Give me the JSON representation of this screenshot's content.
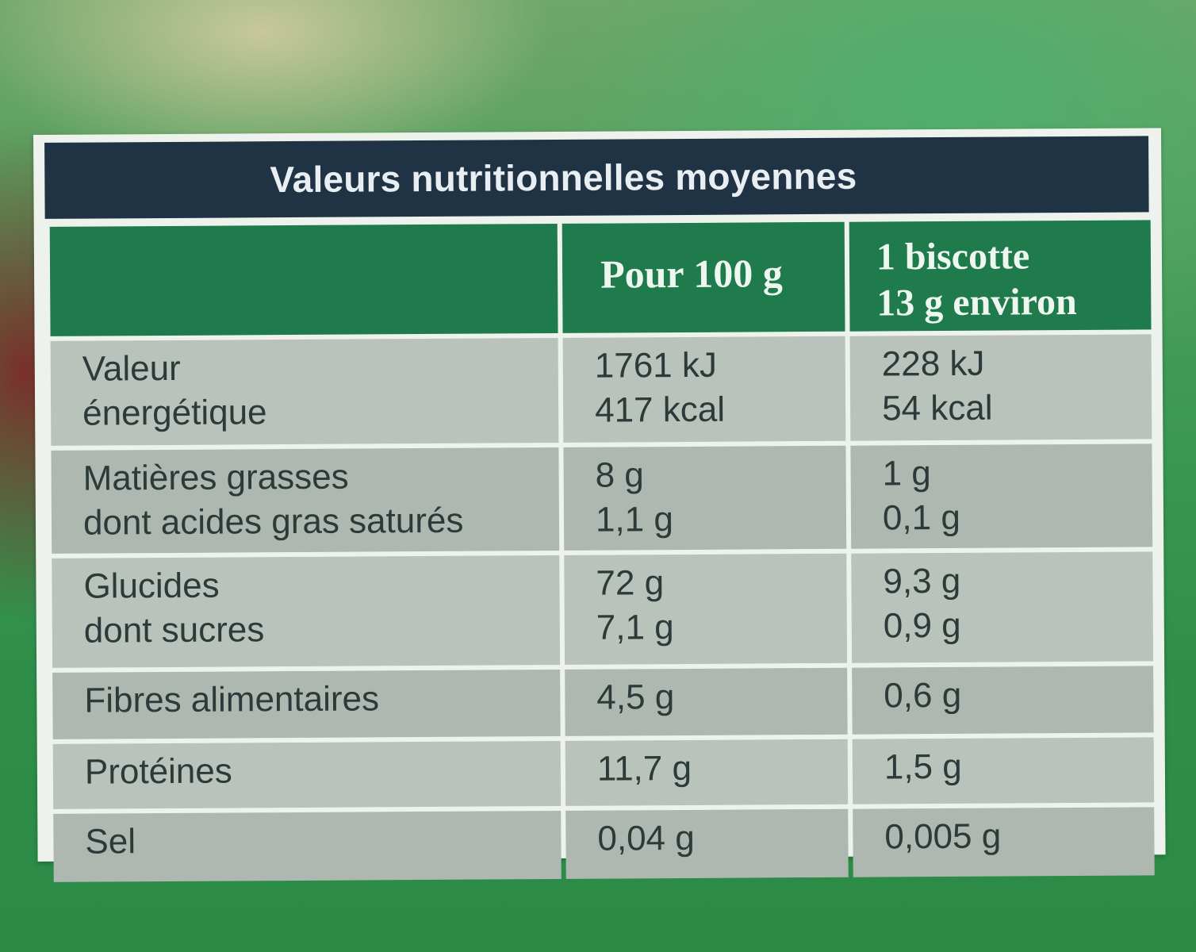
{
  "title": "Valeurs nutritionnelles moyennes",
  "columns": {
    "per100": "Pour 100 g",
    "perUnit_line1": "1 biscotte",
    "perUnit_line2": "13 g environ"
  },
  "rows": [
    {
      "label": [
        "Valeur",
        "énergétique"
      ],
      "per100": [
        "1761 kJ",
        "417 kcal"
      ],
      "perUnit": [
        "228 kJ",
        "54 kcal"
      ]
    },
    {
      "label": [
        "Matières grasses",
        "dont acides gras saturés"
      ],
      "per100": [
        "8 g",
        "1,1 g"
      ],
      "perUnit": [
        "1 g",
        "0,1 g"
      ]
    },
    {
      "label": [
        "Glucides",
        "dont sucres"
      ],
      "per100": [
        "72 g",
        "7,1 g"
      ],
      "perUnit": [
        "9,3 g",
        "0,9 g"
      ]
    },
    {
      "label": [
        "Fibres alimentaires"
      ],
      "per100": [
        "4,5 g"
      ],
      "perUnit": [
        "0,6 g"
      ]
    },
    {
      "label": [
        "Protéines"
      ],
      "per100": [
        "11,7 g"
      ],
      "perUnit": [
        "1,5 g"
      ]
    },
    {
      "label": [
        "Sel"
      ],
      "per100": [
        "0,04 g"
      ],
      "perUnit": [
        "0,005 g"
      ]
    }
  ]
}
